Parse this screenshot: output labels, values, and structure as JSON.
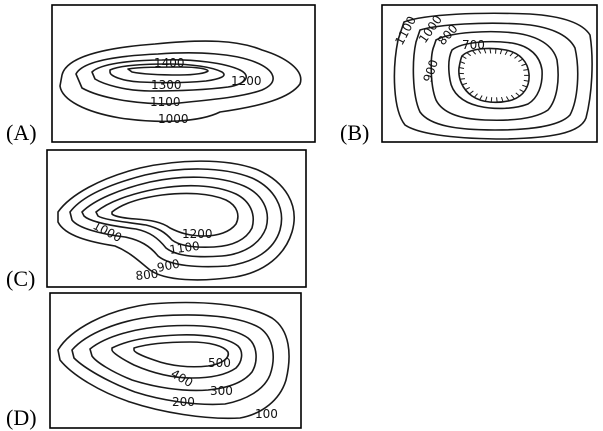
{
  "options": [
    {
      "id": "A",
      "marker": "(A)",
      "labels": [
        "1400",
        "1300",
        "1200",
        "1100",
        "1000"
      ]
    },
    {
      "id": "B",
      "marker": "(B)",
      "labels": [
        "1100",
        "1000",
        "800",
        "700",
        "900"
      ]
    },
    {
      "id": "C",
      "marker": "(C)",
      "labels": [
        "1000",
        "1200",
        "1100",
        "900",
        "800"
      ]
    },
    {
      "id": "D",
      "marker": "(D)",
      "labels": [
        "500",
        "400",
        "300",
        "200",
        "100"
      ]
    }
  ]
}
